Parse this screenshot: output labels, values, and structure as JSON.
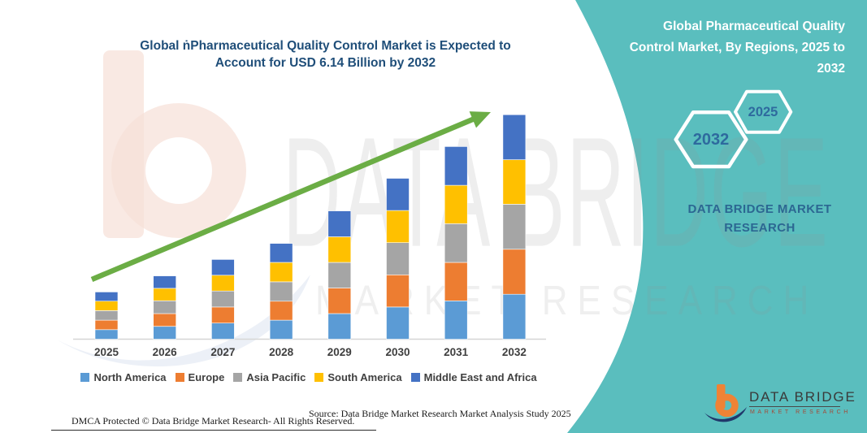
{
  "header": {
    "title_lines": [
      "Global ṅPharmaceutical Quality Control Market is Expected to",
      "Account for USD 6.14 Billion by 2032"
    ]
  },
  "side_panel": {
    "title_lines": [
      "Global Pharmaceutical Quality",
      "Control Market, By Regions, 2025 to",
      "2032"
    ],
    "hex_large_year": "2032",
    "hex_small_year": "2025",
    "brand_caption_line1": "DATA BRIDGE MARKET",
    "brand_caption_line2": "RESEARCH",
    "accent_teal": "#5ABEBE",
    "hex_year_color": "#2E6A9E"
  },
  "watermark": {
    "brand": "DATA BRIDGE",
    "caption": "MARKET RESEARCH"
  },
  "logo": {
    "name": "DATA BRIDGE",
    "sub": "MARKET RESEARCH",
    "orange": "#EF8335",
    "navy": "#20386B"
  },
  "footer": {
    "dmca": "DMCA Protected © Data Bridge Market Research-  All Rights Reserved.",
    "source": "Source: Data Bridge Market Research  Market Analysis Study 2025"
  },
  "chart_data": {
    "type": "bar",
    "stacked": true,
    "title": "Global ṅPharmaceutical Quality Control Market is Expected to Account for USD 6.14 Billion by 2032",
    "unit": "USD Billion",
    "values_estimated_from_pixels": true,
    "categories": [
      "2025",
      "2026",
      "2027",
      "2028",
      "2029",
      "2030",
      "2031",
      "2032"
    ],
    "series": [
      {
        "name": "North America",
        "color": "#5B9BD5",
        "values": [
          0.26,
          0.35,
          0.44,
          0.52,
          0.7,
          0.88,
          1.05,
          1.23
        ]
      },
      {
        "name": "Europe",
        "color": "#ED7D31",
        "values": [
          0.26,
          0.35,
          0.44,
          0.52,
          0.7,
          0.88,
          1.05,
          1.23
        ]
      },
      {
        "name": "Asia Pacific",
        "color": "#A5A5A5",
        "values": [
          0.26,
          0.35,
          0.44,
          0.53,
          0.7,
          0.88,
          1.06,
          1.23
        ]
      },
      {
        "name": "South America",
        "color": "#FFC000",
        "values": [
          0.26,
          0.34,
          0.43,
          0.53,
          0.7,
          0.88,
          1.05,
          1.22
        ]
      },
      {
        "name": "Middle East and Africa",
        "color": "#4472C4",
        "values": [
          0.25,
          0.34,
          0.43,
          0.52,
          0.71,
          0.88,
          1.06,
          1.23
        ]
      }
    ],
    "totals": [
      1.29,
      1.73,
      2.18,
      2.62,
      3.51,
      4.4,
      5.27,
      6.14
    ],
    "ylim": [
      0,
      6.5
    ],
    "grid": false,
    "legend_position": "bottom",
    "trend_arrow": {
      "present": true,
      "color": "#6BAD45"
    }
  }
}
